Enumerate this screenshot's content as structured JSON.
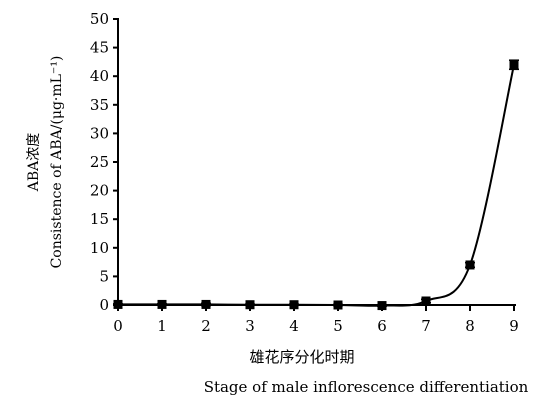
{
  "chart_data": {
    "type": "line",
    "xlabel_cn": "雄花序分化时期",
    "xlabel_en": "Stage of male inflorescence differentiation",
    "ylabel_cn": "ABA浓度",
    "ylabel_en": "Consistence of ABA/(μg·mL⁻¹)",
    "x": [
      0,
      1,
      2,
      3,
      4,
      5,
      6,
      7,
      8,
      9
    ],
    "y_ticks": [
      0,
      5,
      10,
      15,
      20,
      25,
      30,
      35,
      40,
      45,
      50
    ],
    "ylim": [
      0,
      50
    ],
    "xlim": [
      0,
      9
    ],
    "grid": false,
    "series": [
      {
        "values": [
          0.1,
          0.1,
          0.1,
          0.05,
          0.05,
          0.0,
          -0.1,
          0.7,
          7.0,
          42.0
        ],
        "errors": [
          0.1,
          0.1,
          0.2,
          0.1,
          0.1,
          0.1,
          0.1,
          0.3,
          0.4,
          0.8
        ]
      }
    ]
  }
}
